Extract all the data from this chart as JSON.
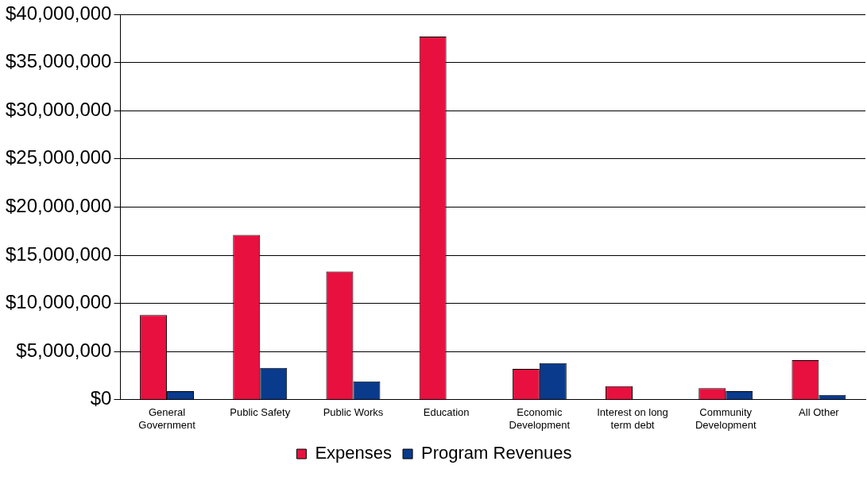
{
  "chart_data": {
    "type": "bar",
    "categories": [
      "General Government",
      "Public Safety",
      "Public Works",
      "Education",
      "Economic Development",
      "Interest on long term debt",
      "Community Development",
      "All Other"
    ],
    "series": [
      {
        "name": "Expenses",
        "color": "#e8103f",
        "values": [
          8800000,
          17100000,
          13300000,
          37700000,
          3200000,
          1400000,
          1200000,
          4100000
        ]
      },
      {
        "name": "Program Revenues",
        "color": "#0a3a8c",
        "values": [
          900000,
          3300000,
          1900000,
          null,
          3800000,
          null,
          900000,
          500000
        ]
      }
    ],
    "ylim": [
      0,
      40000000
    ],
    "yticks": [
      {
        "value": 0,
        "label": "$0"
      },
      {
        "value": 5000000,
        "label": "$5,000,000"
      },
      {
        "value": 10000000,
        "label": "$10,000,000"
      },
      {
        "value": 15000000,
        "label": "$15,000,000"
      },
      {
        "value": 20000000,
        "label": "$20,000,000"
      },
      {
        "value": 25000000,
        "label": "$25,000,000"
      },
      {
        "value": 30000000,
        "label": "$30,000,000"
      },
      {
        "value": 35000000,
        "label": "$35,000,000"
      },
      {
        "value": 40000000,
        "label": "$40,000,000"
      }
    ],
    "grid": "y",
    "legend": "bottom"
  }
}
